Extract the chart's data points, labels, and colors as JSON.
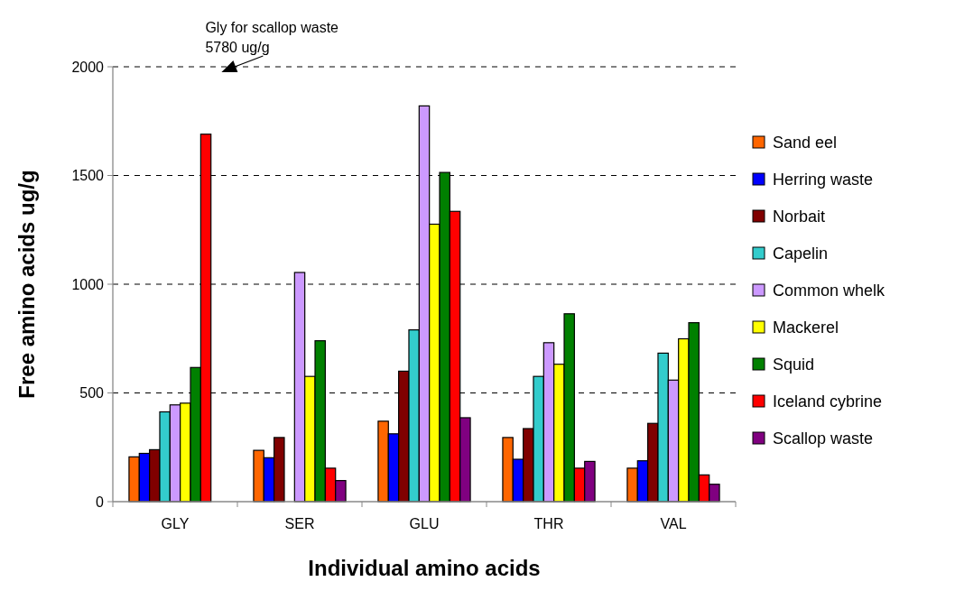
{
  "chart_data": {
    "type": "bar",
    "xlabel": "Individual amino acids",
    "ylabel": "Free amino acids ug/g",
    "categories": [
      "GLY",
      "SER",
      "GLU",
      "THR",
      "VAL"
    ],
    "series": [
      {
        "name": "Sand eel",
        "color": "#ff6600",
        "values": [
          206,
          236,
          370,
          295,
          154
        ]
      },
      {
        "name": "Herring waste",
        "color": "#0000ff",
        "values": [
          222,
          202,
          312,
          195,
          188
        ]
      },
      {
        "name": "Norbait",
        "color": "#800000",
        "values": [
          239,
          295,
          600,
          336,
          360
        ]
      },
      {
        "name": "Capelin",
        "color": "#33cccc",
        "values": [
          413,
          null,
          790,
          576,
          683
        ]
      },
      {
        "name": "Common whelk",
        "color": "#cc99ff",
        "values": [
          445,
          1054,
          1820,
          731,
          559
        ]
      },
      {
        "name": "Mackerel",
        "color": "#ffff00",
        "values": [
          453,
          576,
          1276,
          632,
          749
        ]
      },
      {
        "name": "Squid",
        "color": "#008000",
        "values": [
          617,
          740,
          1514,
          864,
          823
        ]
      },
      {
        "name": "Iceland cybrine",
        "color": "#ff0000",
        "values": [
          1690,
          154,
          1335,
          154,
          123
        ]
      },
      {
        "name": "Scallop waste",
        "color": "#800080",
        "values": [
          null,
          97,
          386,
          185,
          80
        ]
      }
    ],
    "ylim": [
      0,
      2000
    ],
    "yticks": [
      0,
      500,
      1000,
      1500,
      2000
    ],
    "grid": "y",
    "legend": "right",
    "annotations": [
      "Gly for scallop waste\n5780 ug/g"
    ]
  }
}
